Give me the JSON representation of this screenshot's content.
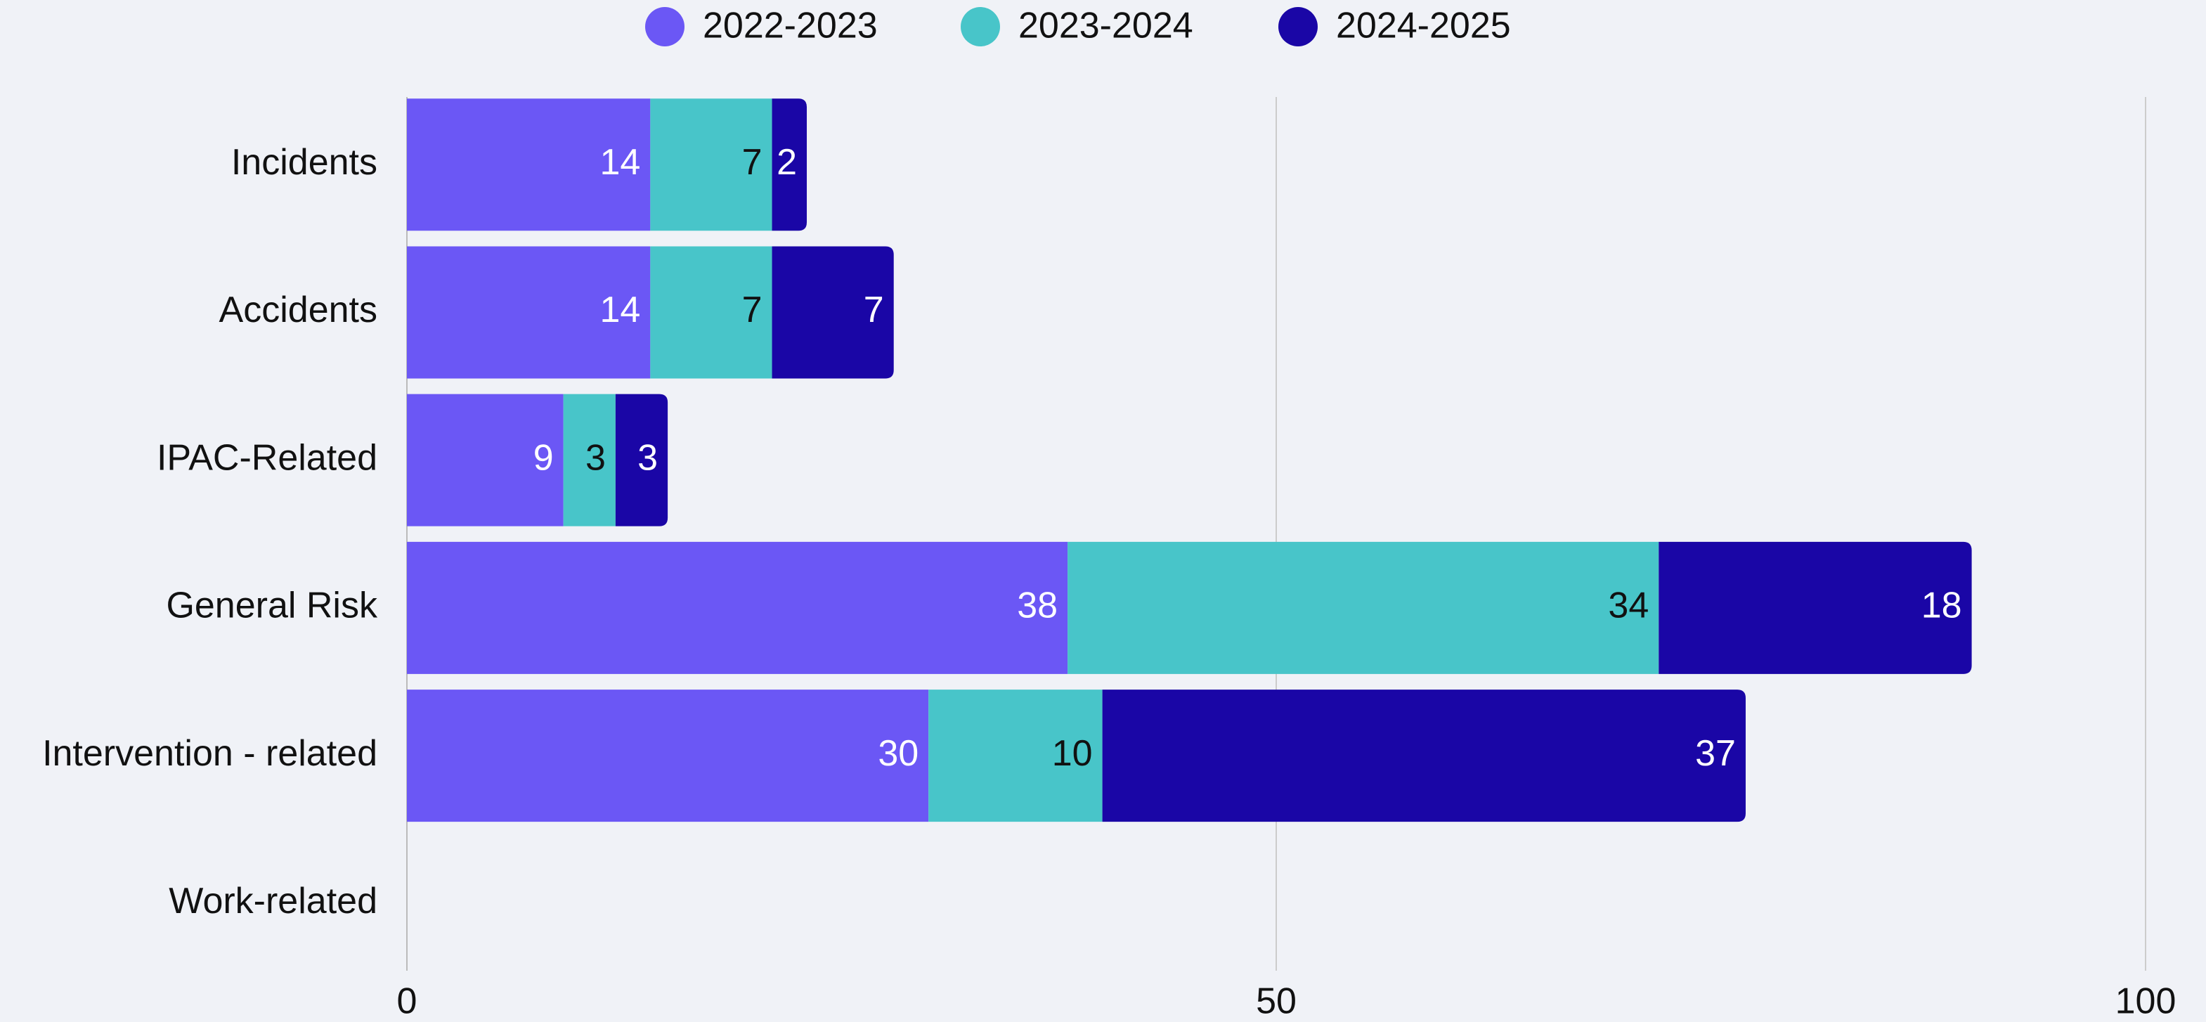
{
  "chart_data": {
    "type": "stacked-bar-horizontal",
    "categories": [
      "Incidents",
      "Accidents",
      "IPAC-Related",
      "General Risk",
      "Intervention - related",
      "Work-related"
    ],
    "series": [
      {
        "name": "2022-2023",
        "color": "#6b57f5",
        "label_color": "#ffffff",
        "values": [
          14,
          14,
          9,
          38,
          30,
          null
        ]
      },
      {
        "name": "2023-2024",
        "color": "#48c5c9",
        "label_color": "#111111",
        "values": [
          7,
          7,
          3,
          34,
          10,
          null
        ]
      },
      {
        "name": "2024-2025",
        "color": "#1a06a6",
        "label_color": "#ffffff",
        "values": [
          2,
          7,
          3,
          18,
          37,
          null
        ]
      }
    ],
    "xlim": [
      0,
      100
    ],
    "xticks": [
      0,
      50,
      100
    ],
    "grid": true,
    "legend": "top"
  }
}
